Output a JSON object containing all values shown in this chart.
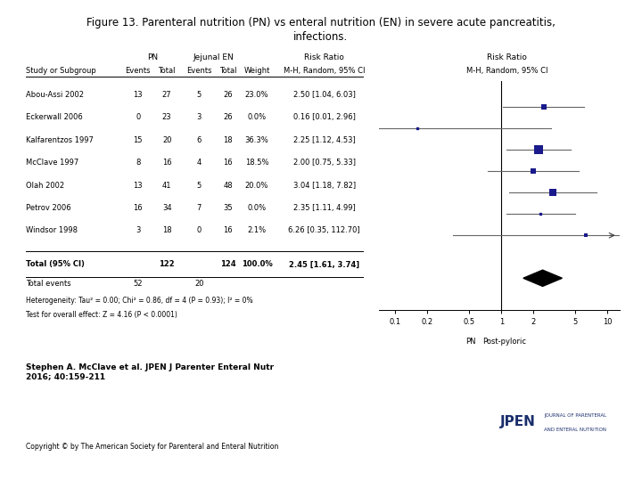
{
  "title_line1": "Figure 13. Parenteral nutrition (PN) vs enteral nutrition (EN) in severe acute pancreatitis,",
  "title_line2": "infections.",
  "studies": [
    {
      "name": "Abou-Assi 2002",
      "pn_events": 13,
      "pn_total": 27,
      "en_events": 5,
      "en_total": 26,
      "weight": "23.0%",
      "rr": 2.5,
      "ci_lo": 1.04,
      "ci_hi": 6.03,
      "rr_str": "2.50 [1.04, 6.03]",
      "show_marker": true,
      "marker_size": 5.0,
      "clipped": false
    },
    {
      "name": "Eckerwall 2006",
      "pn_events": 0,
      "pn_total": 23,
      "en_events": 3,
      "en_total": 26,
      "weight": "0.0%",
      "rr": 0.16,
      "ci_lo": 0.01,
      "ci_hi": 2.96,
      "rr_str": "0.16 [0.01, 2.96]",
      "show_marker": false,
      "marker_size": 2.0,
      "clipped": false
    },
    {
      "name": "Kalfarentzos 1997",
      "pn_events": 15,
      "pn_total": 20,
      "en_events": 6,
      "en_total": 18,
      "weight": "36.3%",
      "rr": 2.25,
      "ci_lo": 1.12,
      "ci_hi": 4.53,
      "rr_str": "2.25 [1.12, 4.53]",
      "show_marker": true,
      "marker_size": 7.0,
      "clipped": false
    },
    {
      "name": "McClave 1997",
      "pn_events": 8,
      "pn_total": 16,
      "en_events": 4,
      "en_total": 16,
      "weight": "18.5%",
      "rr": 2.0,
      "ci_lo": 0.75,
      "ci_hi": 5.33,
      "rr_str": "2.00 [0.75, 5.33]",
      "show_marker": true,
      "marker_size": 4.5,
      "clipped": false
    },
    {
      "name": "Olah 2002",
      "pn_events": 13,
      "pn_total": 41,
      "en_events": 5,
      "en_total": 48,
      "weight": "20.0%",
      "rr": 3.04,
      "ci_lo": 1.18,
      "ci_hi": 7.82,
      "rr_str": "3.04 [1.18, 7.82]",
      "show_marker": true,
      "marker_size": 5.5,
      "clipped": false
    },
    {
      "name": "Petrov 2006",
      "pn_events": 16,
      "pn_total": 34,
      "en_events": 7,
      "en_total": 35,
      "weight": "0.0%",
      "rr": 2.35,
      "ci_lo": 1.11,
      "ci_hi": 4.99,
      "rr_str": "2.35 [1.11, 4.99]",
      "show_marker": false,
      "marker_size": 2.0,
      "clipped": false
    },
    {
      "name": "Windsor 1998",
      "pn_events": 3,
      "pn_total": 18,
      "en_events": 0,
      "en_total": 16,
      "weight": "2.1%",
      "rr": 6.26,
      "ci_lo": 0.35,
      "ci_hi": 112.7,
      "rr_str": "6.26 [0.35, 112.70]",
      "show_marker": true,
      "marker_size": 2.5,
      "clipped": true
    }
  ],
  "total": {
    "pn_total": 122,
    "en_total": 124,
    "weight": "100.0%",
    "rr": 2.45,
    "ci_lo": 1.61,
    "ci_hi": 3.74,
    "rr_str": "2.45 [1.61, 3.74]"
  },
  "total_events_pn": 52,
  "total_events_en": 20,
  "heterogeneity": "Heterogeneity: Tau² = 0.00; Chi² = 0.86, df = 4 (P = 0.93); I² = 0%",
  "overall_effect": "Test for overall effect: Z = 4.16 (P < 0.0001)",
  "marker_color": "#1a1a8c",
  "bg_color": "#ffffff",
  "citation": "Stephen A. McClave et al. JPEN J Parenter Enteral Nutr\n2016; 40:159-211",
  "copyright": "Copyright © by The American Society for Parenteral and Enteral Nutrition",
  "logo_text1": "JPEN",
  "logo_text2": "JOURNAL OF PARENTERAL",
  "logo_text3": "AND ENTERAL NUTRITION"
}
